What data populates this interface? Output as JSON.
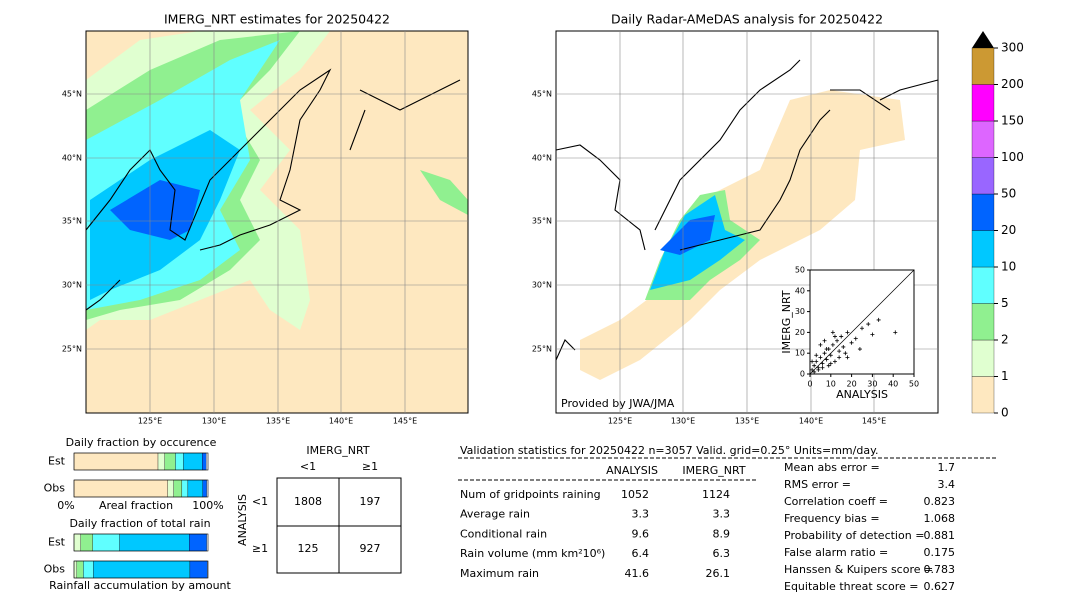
{
  "map_left": {
    "title": "IMERG_NRT estimates for 20250422",
    "lat_labels": [
      "45°N",
      "40°N",
      "35°N",
      "30°N",
      "25°N"
    ],
    "lon_labels": [
      "125°E",
      "130°E",
      "135°E",
      "140°E",
      "145°E"
    ]
  },
  "map_right": {
    "title": "Daily Radar-AMeDAS analysis for 20250422",
    "lat_labels": [
      "45°N",
      "40°N",
      "35°N",
      "30°N",
      "25°N"
    ],
    "lon_labels": [
      "125°E",
      "130°E",
      "135°E",
      "140°E",
      "145°E"
    ],
    "credit": "Provided by JWA/JMA"
  },
  "colorbar": {
    "ticks": [
      0,
      1,
      2,
      5,
      10,
      20,
      50,
      100,
      150,
      200,
      300
    ],
    "colors": [
      "#fee8c0",
      "#e0ffd0",
      "#90f090",
      "#60ffff",
      "#00c8ff",
      "#0064ff",
      "#9966ff",
      "#dd66ff",
      "#ff00ff",
      "#cc9933"
    ],
    "extend_color": "#000000"
  },
  "chart_data": [
    {
      "type": "scatter",
      "xlabel": "ANALYSIS",
      "ylabel": "IMERG_NRT",
      "xlim": [
        0,
        50
      ],
      "ylim": [
        0,
        50
      ],
      "xticks": [
        0,
        10,
        20,
        30,
        40,
        50
      ],
      "yticks": [
        0,
        10,
        20,
        30,
        40,
        50
      ],
      "color": "#000000",
      "x": [
        1,
        2,
        3,
        4,
        5,
        6,
        7,
        8,
        9,
        10,
        11,
        12,
        13,
        14,
        15,
        16,
        17,
        18,
        20,
        22,
        25,
        28,
        30,
        33,
        2,
        4,
        6,
        8,
        10,
        12,
        14,
        3,
        5,
        7,
        9,
        11,
        18,
        24,
        41,
        1
      ],
      "y": [
        2,
        4,
        6,
        3,
        8,
        5,
        10,
        7,
        12,
        9,
        14,
        6,
        16,
        11,
        18,
        13,
        10,
        20,
        15,
        17,
        22,
        24,
        19,
        26,
        1,
        2,
        3,
        12,
        5,
        18,
        8,
        9,
        14,
        16,
        4,
        20,
        8,
        12,
        20,
        6
      ]
    },
    {
      "type": "stacked-bar",
      "title": "Daily fraction by occurence",
      "categories": [
        "Est",
        "Obs"
      ],
      "xlabel": "Areal fraction",
      "xtick_left": "0%",
      "xtick_right": "100%",
      "xlim": [
        0,
        1
      ],
      "series": [
        {
          "color": "#fee8c0",
          "values": [
            0.627,
            0.7
          ]
        },
        {
          "color": "#e0ffd0",
          "values": [
            0.05,
            0.045
          ]
        },
        {
          "color": "#90f090",
          "values": [
            0.08,
            0.06
          ]
        },
        {
          "color": "#60ffff",
          "values": [
            0.06,
            0.045
          ]
        },
        {
          "color": "#00c8ff",
          "values": [
            0.14,
            0.11
          ]
        },
        {
          "color": "#0064ff",
          "values": [
            0.03,
            0.03
          ]
        }
      ]
    },
    {
      "type": "stacked-bar",
      "title": "Daily fraction of total rain",
      "categories": [
        "Est",
        "Obs"
      ],
      "xlabel": "Rainfall accumulation by amount",
      "xlim": [
        0,
        1
      ],
      "series": [
        {
          "color": "#e0ffd0",
          "values": [
            0.05,
            0.02
          ]
        },
        {
          "color": "#90f090",
          "values": [
            0.09,
            0.05
          ]
        },
        {
          "color": "#60ffff",
          "values": [
            0.2,
            0.075
          ]
        },
        {
          "color": "#00c8ff",
          "values": [
            0.52,
            0.72
          ]
        },
        {
          "color": "#0064ff",
          "values": [
            0.13,
            0.13
          ]
        }
      ]
    }
  ],
  "contingency": {
    "title": "IMERG_NRT",
    "columns": [
      "<1",
      "≥1"
    ],
    "row_title": "ANALYSIS",
    "rows": [
      "<1",
      "≥1"
    ],
    "cells": [
      [
        "1808",
        "197"
      ],
      [
        "125",
        "927"
      ]
    ]
  },
  "stats": {
    "header": "Validation statistics for 20250422  n=3057 Valid. grid=0.25° Units=mm/day.",
    "columns": [
      "ANALYSIS",
      "IMERG_NRT"
    ],
    "rows": [
      [
        "Num of gridpoints raining",
        "1052",
        "1124"
      ],
      [
        "Average rain",
        "3.3",
        "3.3"
      ],
      [
        "Conditional rain",
        "9.6",
        "8.9"
      ],
      [
        "Rain volume (mm km²10⁶)",
        "6.4",
        "6.3"
      ],
      [
        "Maximum rain",
        "41.6",
        "26.1"
      ]
    ],
    "scores": [
      [
        "Mean abs error =",
        "1.7"
      ],
      [
        "RMS error =",
        "3.4"
      ],
      [
        "Correlation coeff =",
        "0.823"
      ],
      [
        "Frequency bias =",
        "1.068"
      ],
      [
        "Probability of detection =",
        "0.881"
      ],
      [
        "False alarm ratio =",
        "0.175"
      ],
      [
        "Hanssen & Kuipers score =",
        "0.783"
      ],
      [
        "Equitable threat score =",
        "0.627"
      ]
    ]
  }
}
